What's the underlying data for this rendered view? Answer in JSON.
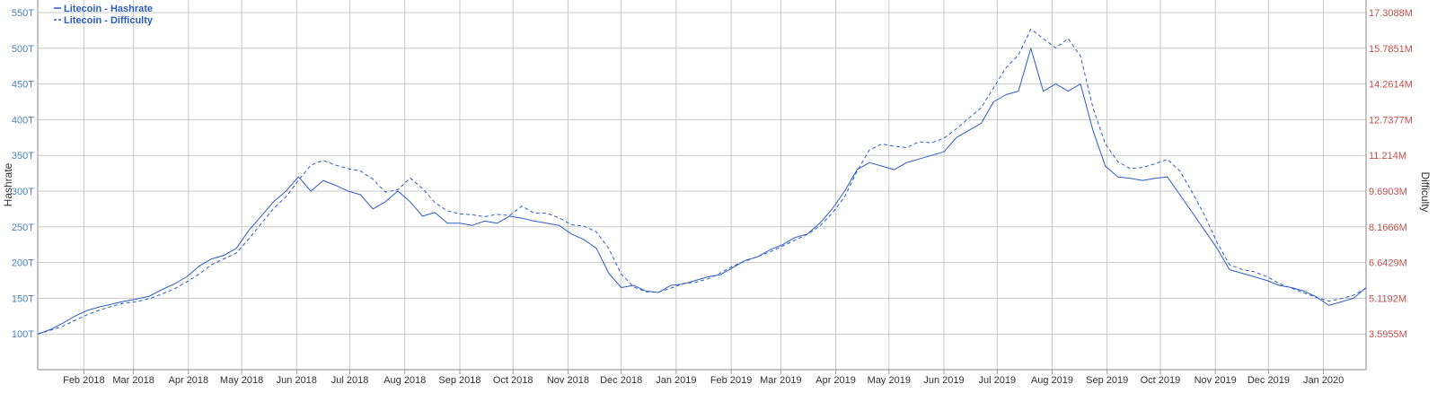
{
  "chart_data": {
    "type": "line",
    "title": "",
    "ylabel": "Hashrate",
    "y2label": "Difficulty",
    "colors": {
      "series": "#2a5cc9",
      "left_axis": "#4a7fc1",
      "right_axis": "#c0504d",
      "grid": "#c8c8c8"
    },
    "grid": true,
    "legend_position": "top-left",
    "ylim": [
      50,
      550
    ],
    "y2lim": [
      2.0732,
      17.3088
    ],
    "yticks": [
      {
        "value": 100,
        "label": "100T"
      },
      {
        "value": 150,
        "label": "150T"
      },
      {
        "value": 200,
        "label": "200T"
      },
      {
        "value": 250,
        "label": "250T"
      },
      {
        "value": 300,
        "label": "300T"
      },
      {
        "value": 350,
        "label": "350T"
      },
      {
        "value": 400,
        "label": "400T"
      },
      {
        "value": 450,
        "label": "450T"
      },
      {
        "value": 500,
        "label": "500T"
      },
      {
        "value": 550,
        "label": "550T"
      }
    ],
    "y2ticks": [
      {
        "value": 3.5955,
        "label": "3.5955M"
      },
      {
        "value": 5.1192,
        "label": "5.1192M"
      },
      {
        "value": 6.6429,
        "label": "6.6429M"
      },
      {
        "value": 8.1666,
        "label": "8.1666M"
      },
      {
        "value": 9.6903,
        "label": "9.6903M"
      },
      {
        "value": 11.214,
        "label": "11.214M"
      },
      {
        "value": 12.7377,
        "label": "12.7377M"
      },
      {
        "value": 14.2614,
        "label": "14.2614M"
      },
      {
        "value": 15.7851,
        "label": "15.7851M"
      },
      {
        "value": 17.3088,
        "label": "17.3088M"
      }
    ],
    "xlim": [
      "2018-01-06",
      "2020-01-25"
    ],
    "xticks": [
      {
        "date": "2018-02-01",
        "label": "Feb 2018"
      },
      {
        "date": "2018-03-01",
        "label": "Mar 2018"
      },
      {
        "date": "2018-04-01",
        "label": "Apr 2018"
      },
      {
        "date": "2018-05-01",
        "label": "May 2018"
      },
      {
        "date": "2018-06-01",
        "label": "Jun 2018"
      },
      {
        "date": "2018-07-01",
        "label": "Jul 2018"
      },
      {
        "date": "2018-08-01",
        "label": "Aug 2018"
      },
      {
        "date": "2018-09-01",
        "label": "Sep 2018"
      },
      {
        "date": "2018-10-01",
        "label": "Oct 2018"
      },
      {
        "date": "2018-11-01",
        "label": "Nov 2018"
      },
      {
        "date": "2018-12-01",
        "label": "Dec 2018"
      },
      {
        "date": "2019-01-01",
        "label": "Jan 2019"
      },
      {
        "date": "2019-02-01",
        "label": "Feb 2019"
      },
      {
        "date": "2019-03-01",
        "label": "Mar 2019"
      },
      {
        "date": "2019-04-01",
        "label": "Apr 2019"
      },
      {
        "date": "2019-05-01",
        "label": "May 2019"
      },
      {
        "date": "2019-06-01",
        "label": "Jun 2019"
      },
      {
        "date": "2019-07-01",
        "label": "Jul 2019"
      },
      {
        "date": "2019-08-01",
        "label": "Aug 2019"
      },
      {
        "date": "2019-09-01",
        "label": "Sep 2019"
      },
      {
        "date": "2019-10-01",
        "label": "Oct 2019"
      },
      {
        "date": "2019-11-01",
        "label": "Nov 2019"
      },
      {
        "date": "2019-12-01",
        "label": "Dec 2019"
      },
      {
        "date": "2020-01-01",
        "label": "Jan 2020"
      }
    ],
    "series": [
      {
        "name": "Litecoin - Hashrate",
        "axis": "left",
        "style": "solid",
        "points": [
          [
            "2018-01-06",
            100
          ],
          [
            "2018-01-13",
            106
          ],
          [
            "2018-01-20",
            115
          ],
          [
            "2018-01-27",
            125
          ],
          [
            "2018-02-03",
            133
          ],
          [
            "2018-02-10",
            138
          ],
          [
            "2018-02-17",
            142
          ],
          [
            "2018-02-24",
            146
          ],
          [
            "2018-03-03",
            149
          ],
          [
            "2018-03-10",
            153
          ],
          [
            "2018-03-17",
            162
          ],
          [
            "2018-03-24",
            170
          ],
          [
            "2018-03-31",
            180
          ],
          [
            "2018-04-07",
            195
          ],
          [
            "2018-04-14",
            205
          ],
          [
            "2018-04-21",
            210
          ],
          [
            "2018-04-28",
            220
          ],
          [
            "2018-05-05",
            245
          ],
          [
            "2018-05-12",
            265
          ],
          [
            "2018-05-19",
            285
          ],
          [
            "2018-05-26",
            300
          ],
          [
            "2018-06-02",
            320
          ],
          [
            "2018-06-09",
            300
          ],
          [
            "2018-06-16",
            315
          ],
          [
            "2018-06-23",
            308
          ],
          [
            "2018-06-30",
            300
          ],
          [
            "2018-07-07",
            295
          ],
          [
            "2018-07-14",
            275
          ],
          [
            "2018-07-21",
            285
          ],
          [
            "2018-07-28",
            300
          ],
          [
            "2018-08-04",
            285
          ],
          [
            "2018-08-11",
            265
          ],
          [
            "2018-08-18",
            270
          ],
          [
            "2018-08-25",
            255
          ],
          [
            "2018-09-01",
            255
          ],
          [
            "2018-09-08",
            252
          ],
          [
            "2018-09-15",
            258
          ],
          [
            "2018-09-22",
            255
          ],
          [
            "2018-09-29",
            265
          ],
          [
            "2018-10-06",
            262
          ],
          [
            "2018-10-13",
            258
          ],
          [
            "2018-10-20",
            255
          ],
          [
            "2018-10-27",
            252
          ],
          [
            "2018-11-03",
            240
          ],
          [
            "2018-11-10",
            232
          ],
          [
            "2018-11-17",
            220
          ],
          [
            "2018-11-24",
            185
          ],
          [
            "2018-12-01",
            165
          ],
          [
            "2018-12-08",
            168
          ],
          [
            "2018-12-15",
            160
          ],
          [
            "2018-12-22",
            158
          ],
          [
            "2018-12-29",
            168
          ],
          [
            "2019-01-05",
            170
          ],
          [
            "2019-01-12",
            175
          ],
          [
            "2019-01-19",
            180
          ],
          [
            "2019-01-26",
            183
          ],
          [
            "2019-02-02",
            193
          ],
          [
            "2019-02-09",
            203
          ],
          [
            "2019-02-16",
            208
          ],
          [
            "2019-02-23",
            218
          ],
          [
            "2019-03-02",
            225
          ],
          [
            "2019-03-09",
            235
          ],
          [
            "2019-03-16",
            240
          ],
          [
            "2019-03-23",
            255
          ],
          [
            "2019-03-30",
            275
          ],
          [
            "2019-04-06",
            300
          ],
          [
            "2019-04-13",
            330
          ],
          [
            "2019-04-20",
            340
          ],
          [
            "2019-04-27",
            335
          ],
          [
            "2019-05-04",
            330
          ],
          [
            "2019-05-11",
            340
          ],
          [
            "2019-05-18",
            345
          ],
          [
            "2019-05-25",
            350
          ],
          [
            "2019-06-01",
            355
          ],
          [
            "2019-06-08",
            375
          ],
          [
            "2019-06-15",
            385
          ],
          [
            "2019-06-22",
            395
          ],
          [
            "2019-06-29",
            425
          ],
          [
            "2019-07-06",
            435
          ],
          [
            "2019-07-13",
            440
          ],
          [
            "2019-07-20",
            500
          ],
          [
            "2019-07-27",
            440
          ],
          [
            "2019-08-03",
            450
          ],
          [
            "2019-08-10",
            440
          ],
          [
            "2019-08-17",
            450
          ],
          [
            "2019-08-24",
            385
          ],
          [
            "2019-08-31",
            335
          ],
          [
            "2019-09-07",
            320
          ],
          [
            "2019-09-14",
            318
          ],
          [
            "2019-09-21",
            315
          ],
          [
            "2019-09-28",
            318
          ],
          [
            "2019-10-05",
            320
          ],
          [
            "2019-10-12",
            295
          ],
          [
            "2019-10-19",
            270
          ],
          [
            "2019-10-26",
            245
          ],
          [
            "2019-11-02",
            220
          ],
          [
            "2019-11-09",
            190
          ],
          [
            "2019-11-16",
            185
          ],
          [
            "2019-11-23",
            180
          ],
          [
            "2019-11-30",
            175
          ],
          [
            "2019-12-07",
            168
          ],
          [
            "2019-12-14",
            165
          ],
          [
            "2019-12-21",
            160
          ],
          [
            "2019-12-28",
            152
          ],
          [
            "2020-01-04",
            140
          ],
          [
            "2020-01-11",
            145
          ],
          [
            "2020-01-18",
            150
          ],
          [
            "2020-01-25",
            165
          ]
        ]
      },
      {
        "name": "Litecoin - Difficulty",
        "axis": "right",
        "style": "dashed",
        "points": [
          [
            "2018-01-06",
            3.59
          ],
          [
            "2018-01-13",
            3.75
          ],
          [
            "2018-01-20",
            3.92
          ],
          [
            "2018-01-27",
            4.18
          ],
          [
            "2018-02-03",
            4.42
          ],
          [
            "2018-02-10",
            4.62
          ],
          [
            "2018-02-17",
            4.78
          ],
          [
            "2018-02-24",
            4.92
          ],
          [
            "2018-03-03",
            4.98
          ],
          [
            "2018-03-10",
            5.1
          ],
          [
            "2018-03-17",
            5.3
          ],
          [
            "2018-03-24",
            5.52
          ],
          [
            "2018-03-31",
            5.82
          ],
          [
            "2018-04-07",
            6.15
          ],
          [
            "2018-04-14",
            6.55
          ],
          [
            "2018-04-21",
            6.8
          ],
          [
            "2018-04-28",
            7.05
          ],
          [
            "2018-05-05",
            7.65
          ],
          [
            "2018-05-12",
            8.3
          ],
          [
            "2018-05-19",
            8.95
          ],
          [
            "2018-05-26",
            9.45
          ],
          [
            "2018-06-02",
            10.15
          ],
          [
            "2018-06-09",
            10.8
          ],
          [
            "2018-06-16",
            11.0
          ],
          [
            "2018-06-23",
            10.8
          ],
          [
            "2018-06-30",
            10.65
          ],
          [
            "2018-07-07",
            10.55
          ],
          [
            "2018-07-14",
            10.2
          ],
          [
            "2018-07-21",
            9.65
          ],
          [
            "2018-07-28",
            9.75
          ],
          [
            "2018-08-04",
            10.25
          ],
          [
            "2018-08-11",
            9.8
          ],
          [
            "2018-08-18",
            9.2
          ],
          [
            "2018-08-25",
            8.85
          ],
          [
            "2018-09-01",
            8.72
          ],
          [
            "2018-09-08",
            8.68
          ],
          [
            "2018-09-15",
            8.6
          ],
          [
            "2018-09-22",
            8.7
          ],
          [
            "2018-09-29",
            8.65
          ],
          [
            "2018-10-06",
            9.05
          ],
          [
            "2018-10-13",
            8.75
          ],
          [
            "2018-10-20",
            8.75
          ],
          [
            "2018-10-27",
            8.55
          ],
          [
            "2018-11-03",
            8.25
          ],
          [
            "2018-11-10",
            8.2
          ],
          [
            "2018-11-17",
            7.95
          ],
          [
            "2018-11-24",
            7.25
          ],
          [
            "2018-12-01",
            6.15
          ],
          [
            "2018-12-08",
            5.6
          ],
          [
            "2018-12-15",
            5.4
          ],
          [
            "2018-12-22",
            5.38
          ],
          [
            "2018-12-29",
            5.55
          ],
          [
            "2019-01-05",
            5.75
          ],
          [
            "2019-01-12",
            5.8
          ],
          [
            "2019-01-19",
            5.95
          ],
          [
            "2019-01-26",
            6.2
          ],
          [
            "2019-02-02",
            6.5
          ],
          [
            "2019-02-09",
            6.7
          ],
          [
            "2019-02-16",
            6.9
          ],
          [
            "2019-02-23",
            7.1
          ],
          [
            "2019-03-02",
            7.35
          ],
          [
            "2019-03-09",
            7.6
          ],
          [
            "2019-03-16",
            7.85
          ],
          [
            "2019-03-23",
            8.2
          ],
          [
            "2019-03-30",
            8.75
          ],
          [
            "2019-04-06",
            9.45
          ],
          [
            "2019-04-13",
            10.55
          ],
          [
            "2019-04-20",
            11.45
          ],
          [
            "2019-04-27",
            11.7
          ],
          [
            "2019-05-04",
            11.6
          ],
          [
            "2019-05-11",
            11.55
          ],
          [
            "2019-05-18",
            11.8
          ],
          [
            "2019-05-25",
            11.75
          ],
          [
            "2019-06-01",
            11.95
          ],
          [
            "2019-06-08",
            12.35
          ],
          [
            "2019-06-15",
            12.8
          ],
          [
            "2019-06-22",
            13.25
          ],
          [
            "2019-06-29",
            14.1
          ],
          [
            "2019-07-06",
            14.95
          ],
          [
            "2019-07-13",
            15.5
          ],
          [
            "2019-07-20",
            16.6
          ],
          [
            "2019-07-27",
            16.2
          ],
          [
            "2019-08-03",
            15.8
          ],
          [
            "2019-08-10",
            16.2
          ],
          [
            "2019-08-17",
            15.45
          ],
          [
            "2019-08-24",
            13.25
          ],
          [
            "2019-08-31",
            11.7
          ],
          [
            "2019-09-07",
            10.95
          ],
          [
            "2019-09-14",
            10.65
          ],
          [
            "2019-09-21",
            10.7
          ],
          [
            "2019-09-28",
            10.85
          ],
          [
            "2019-10-05",
            11.05
          ],
          [
            "2019-10-12",
            10.55
          ],
          [
            "2019-10-19",
            9.65
          ],
          [
            "2019-10-26",
            8.65
          ],
          [
            "2019-11-02",
            7.5
          ],
          [
            "2019-11-09",
            6.55
          ],
          [
            "2019-11-16",
            6.35
          ],
          [
            "2019-11-23",
            6.25
          ],
          [
            "2019-11-30",
            6.05
          ],
          [
            "2019-12-07",
            5.75
          ],
          [
            "2019-12-14",
            5.55
          ],
          [
            "2019-12-21",
            5.35
          ],
          [
            "2019-12-28",
            5.15
          ],
          [
            "2020-01-04",
            5.0
          ],
          [
            "2020-01-11",
            5.1
          ],
          [
            "2020-01-18",
            5.25
          ],
          [
            "2020-01-25",
            5.55
          ]
        ]
      }
    ]
  }
}
